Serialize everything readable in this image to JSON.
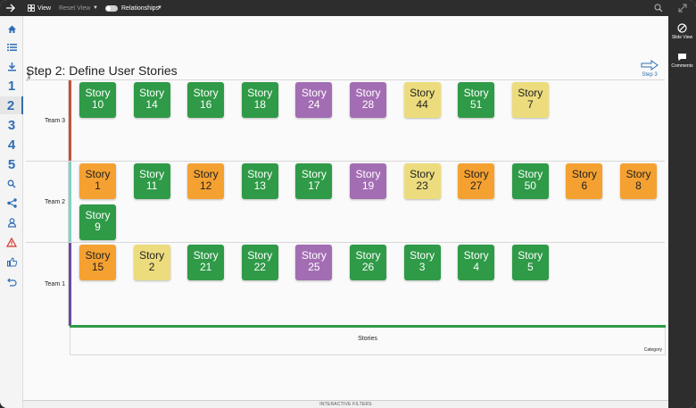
{
  "toolbar": {
    "view_label": "View",
    "reset_label": "Reset View",
    "relationships_label": "Relationships"
  },
  "leftnav": {
    "steps": [
      "1",
      "2",
      "3",
      "4",
      "5"
    ],
    "active_step": "2"
  },
  "rightpanel": {
    "slide_view_label": "Slide View",
    "comments_label": "Comments"
  },
  "main": {
    "title": "Step 2: Define User Stories",
    "next_step_label": "Step 3",
    "team_axis_label": "Team",
    "x_axis_label": "Stories",
    "x_axis_title": "Category",
    "filters_label": "INTERACTIVE FILTERS"
  },
  "colors": {
    "green": "#2f9a47",
    "purple": "#a36db3",
    "yellow": "#ecdc7d",
    "orange": "#f5a131",
    "team3_bar": "#c0533f",
    "team2_bar": "#7fd3c4",
    "team1_bar": "#6a4ba1"
  },
  "teams": [
    {
      "name": "Team 3",
      "cards": [
        {
          "label": "Story",
          "num": "10",
          "color": "green"
        },
        {
          "label": "Story",
          "num": "14",
          "color": "green"
        },
        {
          "label": "Story",
          "num": "16",
          "color": "green"
        },
        {
          "label": "Story",
          "num": "18",
          "color": "green"
        },
        {
          "label": "Story",
          "num": "24",
          "color": "purple"
        },
        {
          "label": "Story",
          "num": "28",
          "color": "purple"
        },
        {
          "label": "Story",
          "num": "44",
          "color": "yellow"
        },
        {
          "label": "Story",
          "num": "51",
          "color": "green"
        },
        {
          "label": "Story",
          "num": "7",
          "color": "yellow"
        }
      ]
    },
    {
      "name": "Team 2",
      "cards": [
        {
          "label": "Story",
          "num": "1",
          "color": "orange"
        },
        {
          "label": "Story",
          "num": "11",
          "color": "green"
        },
        {
          "label": "Story",
          "num": "12",
          "color": "orange"
        },
        {
          "label": "Story",
          "num": "13",
          "color": "green"
        },
        {
          "label": "Story",
          "num": "17",
          "color": "green"
        },
        {
          "label": "Story",
          "num": "19",
          "color": "purple"
        },
        {
          "label": "Story",
          "num": "23",
          "color": "yellow"
        },
        {
          "label": "Story",
          "num": "27",
          "color": "orange"
        },
        {
          "label": "Story",
          "num": "50",
          "color": "green"
        },
        {
          "label": "Story",
          "num": "6",
          "color": "orange"
        },
        {
          "label": "Story",
          "num": "8",
          "color": "orange"
        },
        {
          "label": "Story",
          "num": "9",
          "color": "green"
        }
      ]
    },
    {
      "name": "Team 1",
      "cards": [
        {
          "label": "Story",
          "num": "15",
          "color": "orange"
        },
        {
          "label": "Story",
          "num": "2",
          "color": "yellow"
        },
        {
          "label": "Story",
          "num": "21",
          "color": "green"
        },
        {
          "label": "Story",
          "num": "22",
          "color": "green"
        },
        {
          "label": "Story",
          "num": "25",
          "color": "purple"
        },
        {
          "label": "Story",
          "num": "26",
          "color": "green"
        },
        {
          "label": "Story",
          "num": "3",
          "color": "green"
        },
        {
          "label": "Story",
          "num": "4",
          "color": "green"
        },
        {
          "label": "Story",
          "num": "5",
          "color": "green"
        }
      ]
    }
  ]
}
